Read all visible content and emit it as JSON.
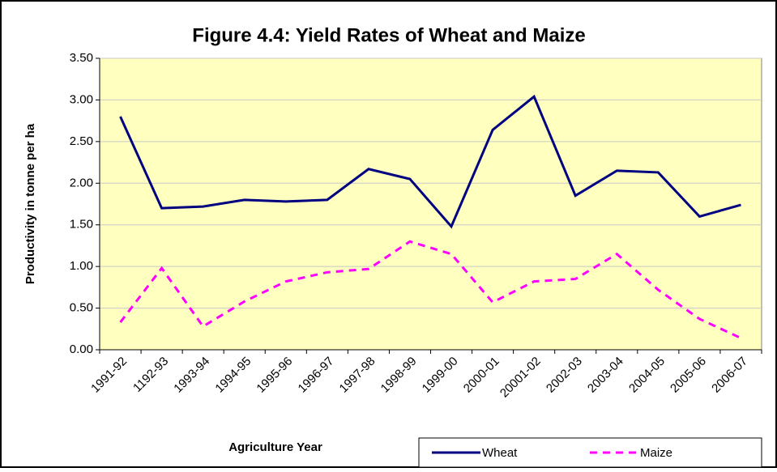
{
  "chart_data": {
    "type": "line",
    "title": "Figure 4.4: Yield Rates of Wheat and Maize",
    "x_label": "Agriculture Year",
    "y_label": "Productivity in tonne per ha",
    "categories": [
      "1991-92",
      "1192-93",
      "1993-94",
      "1994-95",
      "1995-96",
      "1996-97",
      "1997-98",
      "1998-99",
      "1999-00",
      "2000-01",
      "20001-02",
      "2002-03",
      "2003-04",
      "2004-05",
      "2005-06",
      "2006-07"
    ],
    "series": [
      {
        "name": "Wheat",
        "color": "#000080",
        "dash": "solid",
        "values": [
          2.8,
          1.7,
          1.72,
          1.8,
          1.78,
          1.8,
          2.17,
          2.05,
          1.48,
          2.64,
          3.04,
          1.85,
          2.15,
          2.13,
          1.6,
          1.74
        ]
      },
      {
        "name": "Maize",
        "color": "#ff00ff",
        "dash": "dashed",
        "values": [
          0.33,
          0.98,
          0.28,
          0.58,
          0.82,
          0.93,
          0.97,
          1.3,
          1.15,
          0.57,
          0.82,
          0.85,
          1.15,
          0.72,
          0.37,
          0.14
        ]
      }
    ],
    "ylim": [
      0,
      3.5
    ],
    "yticks": [
      {
        "value": 0,
        "label": "0.00"
      },
      {
        "value": 0.5,
        "label": "0.50"
      },
      {
        "value": 1,
        "label": "1.00"
      },
      {
        "value": 1.5,
        "label": "1.50"
      },
      {
        "value": 2,
        "label": "2.00"
      },
      {
        "value": 2.5,
        "label": "2.50"
      },
      {
        "value": 3,
        "label": "3.00"
      },
      {
        "value": 3.5,
        "label": "3.50"
      }
    ],
    "grid": true,
    "plot_background": "#ffffc0",
    "legend": "bottom-right"
  }
}
